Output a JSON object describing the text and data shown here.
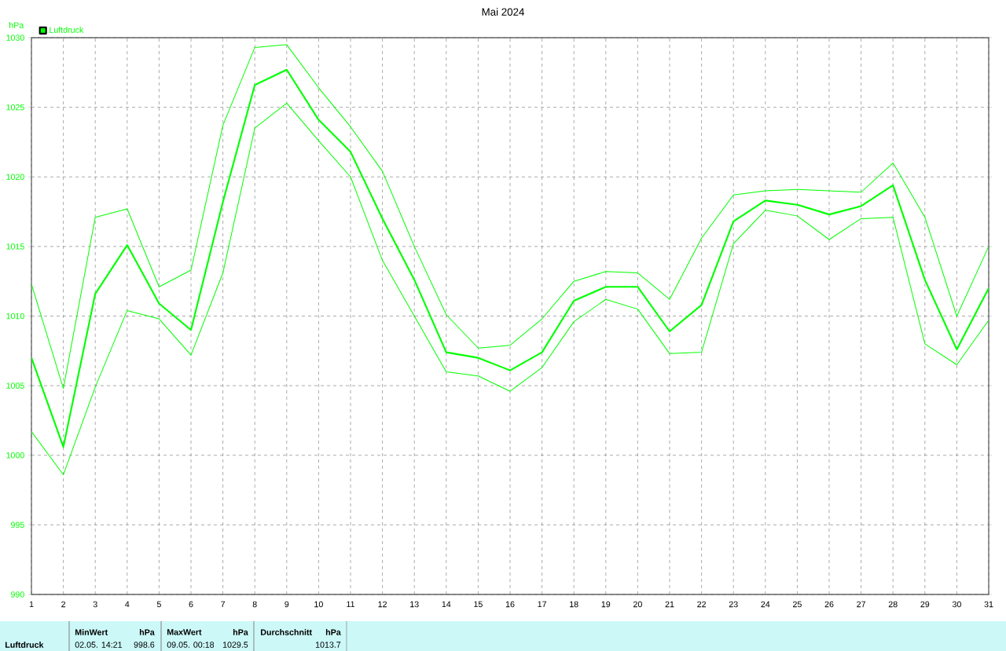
{
  "chart_data": {
    "type": "line",
    "title": "Mai 2024",
    "ylabel": "hPa",
    "legend": "top left",
    "grid": true,
    "x": [
      1,
      2,
      3,
      4,
      5,
      6,
      7,
      8,
      9,
      10,
      11,
      12,
      13,
      14,
      15,
      16,
      17,
      18,
      19,
      20,
      21,
      22,
      23,
      24,
      25,
      26,
      27,
      28,
      29,
      30,
      31
    ],
    "xlim": [
      1,
      31
    ],
    "xticks": [
      1,
      2,
      3,
      4,
      5,
      6,
      7,
      8,
      9,
      10,
      11,
      12,
      13,
      14,
      15,
      16,
      17,
      18,
      19,
      20,
      21,
      22,
      23,
      24,
      25,
      26,
      27,
      28,
      29,
      30,
      31
    ],
    "ylim": [
      990,
      1030
    ],
    "yticks": [
      990,
      995,
      1000,
      1005,
      1010,
      1015,
      1020,
      1025,
      1030
    ],
    "series": [
      {
        "name": "Luftdruck",
        "color": "#00ff00",
        "values": [
          1007.0,
          1000.6,
          1011.6,
          1015.1,
          1010.9,
          1009.0,
          1018.2,
          1026.6,
          1027.7,
          1024.1,
          1021.8,
          1017.0,
          1012.6,
          1007.4,
          1007.0,
          1006.1,
          1007.4,
          1011.1,
          1012.1,
          1012.1,
          1008.9,
          1010.8,
          1016.8,
          1018.3,
          1018.0,
          1017.3,
          1017.9,
          1019.4,
          1012.6,
          1007.6,
          1012.0
        ]
      },
      {
        "color": "#00ff00",
        "values": [
          1012.3,
          1004.8,
          1017.1,
          1017.7,
          1012.1,
          1013.3,
          1023.7,
          1029.3,
          1029.5,
          1026.4,
          1023.6,
          1020.4,
          1015.0,
          1010.1,
          1007.7,
          1007.9,
          1009.8,
          1012.5,
          1013.2,
          1013.1,
          1011.2,
          1015.6,
          1018.7,
          1019.0,
          1019.1,
          1019.0,
          1018.9,
          1021.0,
          1017.1,
          1010.0,
          1015.0
        ]
      },
      {
        "color": "#00ff00",
        "values": [
          1001.7,
          998.6,
          1004.9,
          1010.4,
          1009.8,
          1007.2,
          1013.1,
          1023.5,
          1025.3,
          1022.6,
          1020.0,
          1014.0,
          1010.0,
          1006.0,
          1005.7,
          1004.6,
          1006.3,
          1009.6,
          1011.2,
          1010.5,
          1007.3,
          1007.4,
          1015.2,
          1017.6,
          1017.2,
          1015.5,
          1017.0,
          1017.1,
          1008.0,
          1006.5,
          1009.7
        ]
      }
    ],
    "annotations": [
      "Luftdruck",
      "MinWert",
      "hPa",
      "02.05. 14:21",
      "998.6",
      "MaxWert",
      "hPa",
      "09.05. 00:18",
      "1029.5",
      "Durchschnitt",
      "hPa",
      "1013.7"
    ]
  }
}
